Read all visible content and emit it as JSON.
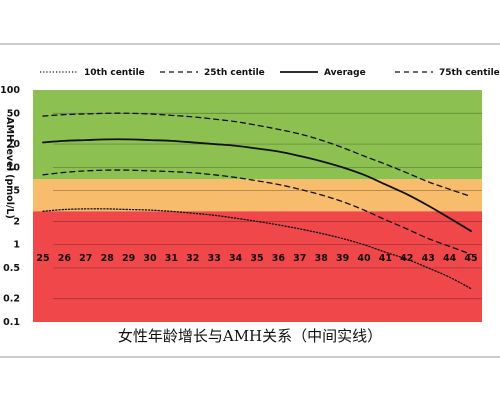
{
  "chart_data": {
    "type": "line",
    "title": "",
    "caption": "女性年龄增长与AMH关系（中间实线）",
    "xlabel": "",
    "ylabel": "AMH level (pmol/L)",
    "y_scale": "log",
    "ylim": [
      0.1,
      100
    ],
    "xlim": [
      25,
      45
    ],
    "x": [
      25,
      26,
      27,
      28,
      29,
      30,
      31,
      32,
      33,
      34,
      35,
      36,
      37,
      38,
      39,
      40,
      41,
      42,
      43,
      44,
      45
    ],
    "x_tick_labels": [
      "25",
      "26",
      "27",
      "28",
      "29",
      "30",
      "31",
      "32",
      "33",
      "34",
      "35",
      "36",
      "37",
      "38",
      "39",
      "40",
      "41",
      "42",
      "43",
      "44",
      "45"
    ],
    "y_tick_labels": [
      "100",
      "50",
      "20",
      "10",
      "5",
      "2",
      "1",
      "0.5",
      "0.2",
      "0.1"
    ],
    "y_ticks": [
      100,
      50,
      20,
      10,
      5,
      2,
      1,
      0.5,
      0.2,
      0.1
    ],
    "grid": false,
    "legend_position": "top",
    "bands": [
      {
        "from": 7,
        "to": 100,
        "color": "#8cc152"
      },
      {
        "from": 2.7,
        "to": 7,
        "color": "#f7bd6c"
      },
      {
        "from": 0.1,
        "to": 2.7,
        "color": "#f0474b"
      }
    ],
    "series": [
      {
        "name": "10th centile",
        "style": "dotted",
        "values": [
          2.7,
          2.85,
          2.9,
          2.9,
          2.85,
          2.8,
          2.7,
          2.55,
          2.4,
          2.2,
          2.0,
          1.8,
          1.6,
          1.4,
          1.2,
          1.0,
          0.8,
          0.65,
          0.5,
          0.38,
          0.27
        ]
      },
      {
        "name": "25th centile",
        "style": "dashed",
        "values": [
          8.0,
          8.6,
          9.0,
          9.2,
          9.2,
          9.0,
          8.8,
          8.5,
          8.0,
          7.4,
          6.7,
          6.0,
          5.2,
          4.4,
          3.6,
          2.8,
          2.1,
          1.6,
          1.2,
          0.95,
          0.75
        ]
      },
      {
        "name": "Average",
        "style": "solid",
        "values": [
          21,
          22,
          22.5,
          23,
          23,
          22.5,
          22,
          21,
          20,
          19,
          17.5,
          16,
          14,
          12,
          10,
          8,
          6,
          4.5,
          3.2,
          2.2,
          1.5
        ]
      },
      {
        "name": "75th centile",
        "style": "dashed",
        "values": [
          46,
          48,
          49,
          50,
          50,
          49,
          47,
          45,
          42,
          39,
          35,
          31,
          27,
          22.5,
          18,
          14,
          11,
          8.5,
          6.5,
          5.2,
          4.2
        ]
      }
    ]
  },
  "colors": {
    "line": "#111111",
    "chart_bg": "#ffffff"
  }
}
